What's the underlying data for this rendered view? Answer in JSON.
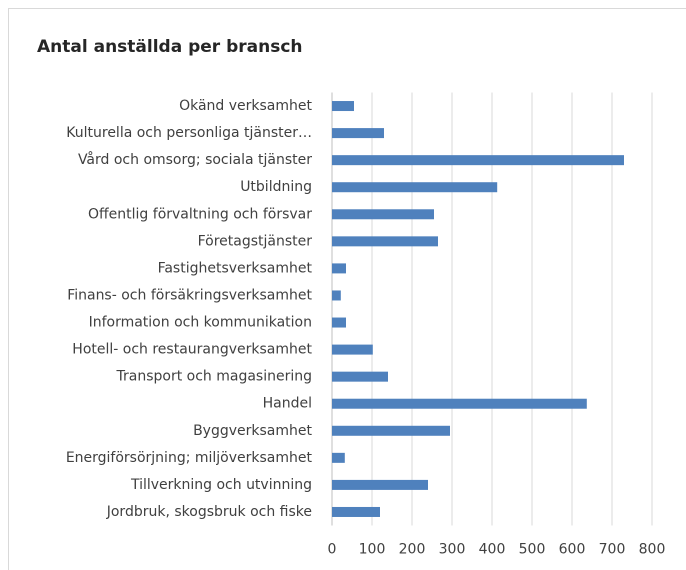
{
  "chart_data": {
    "type": "bar",
    "orientation": "horizontal",
    "title": "Antal anställda per bransch",
    "categories": [
      "Okänd verksamhet",
      "Kulturella och personliga tjänster…",
      "Vård och omsorg; sociala tjänster",
      "Utbildning",
      "Offentlig förvaltning och försvar",
      "Företagstjänster",
      "Fastighetsverksamhet",
      "Finans- och försäkringsverksamhet",
      "Information och kommunikation",
      "Hotell- och restaurangverksamhet",
      "Transport och magasinering",
      "Handel",
      "Byggverksamhet",
      "Energiförsörjning; miljöverksamhet",
      "Tillverkning och utvinning",
      "Jordbruk, skogsbruk och fiske"
    ],
    "values": [
      55,
      130,
      730,
      413,
      255,
      265,
      35,
      22,
      35,
      102,
      140,
      637,
      295,
      32,
      240,
      120
    ],
    "color": "#4f81bd",
    "xlim": [
      0,
      800
    ],
    "xticks": [
      0,
      100,
      200,
      300,
      400,
      500,
      600,
      700,
      800
    ],
    "grid": true
  }
}
